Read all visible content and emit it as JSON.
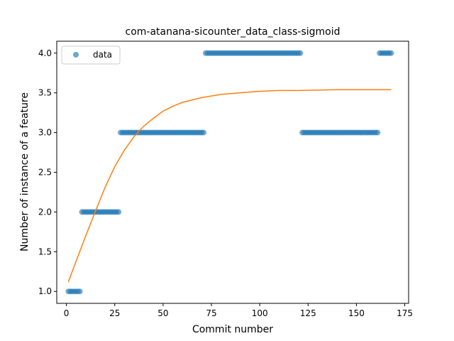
{
  "chart_data": {
    "type": "scatter",
    "title": "com-atanana-sicounter_data_class-sigmoid",
    "xlabel": "Commit number",
    "ylabel": "Number of instance of a feature",
    "xlim": [
      -5,
      177
    ],
    "ylim": [
      0.85,
      4.15
    ],
    "xticks": [
      0,
      25,
      50,
      75,
      100,
      125,
      150,
      175
    ],
    "yticks": [
      1.0,
      1.5,
      2.0,
      2.5,
      3.0,
      3.5,
      4.0
    ],
    "xtick_labels": [
      "0",
      "25",
      "50",
      "75",
      "100",
      "125",
      "150",
      "175"
    ],
    "ytick_labels": [
      "1.0",
      "1.5",
      "2.0",
      "2.5",
      "3.0",
      "3.5",
      "4.0"
    ],
    "legend": {
      "position": "top-left",
      "entries": [
        "data"
      ]
    },
    "grid": false,
    "colors": {
      "data": "#1f77b4",
      "fit": "#ff7f0e"
    },
    "series": [
      {
        "name": "data",
        "kind": "scatter",
        "segments": [
          {
            "x_start": 1,
            "x_end": 7,
            "y": 1.0
          },
          {
            "x_start": 8,
            "x_end": 27,
            "y": 2.0
          },
          {
            "x_start": 28,
            "x_end": 71,
            "y": 3.0
          },
          {
            "x_start": 72,
            "x_end": 121,
            "y": 4.0
          },
          {
            "x_start": 122,
            "x_end": 161,
            "y": 3.0
          },
          {
            "x_start": 162,
            "x_end": 168,
            "y": 4.0
          }
        ]
      },
      {
        "kind": "line",
        "x": [
          1,
          5,
          10,
          15,
          20,
          25,
          30,
          35,
          40,
          45,
          50,
          55,
          60,
          70,
          80,
          90,
          100,
          110,
          120,
          140,
          168
        ],
        "y": [
          1.12,
          1.38,
          1.7,
          2.01,
          2.31,
          2.57,
          2.78,
          2.95,
          3.08,
          3.18,
          3.27,
          3.33,
          3.38,
          3.44,
          3.48,
          3.5,
          3.52,
          3.53,
          3.53,
          3.54,
          3.54
        ]
      }
    ]
  }
}
